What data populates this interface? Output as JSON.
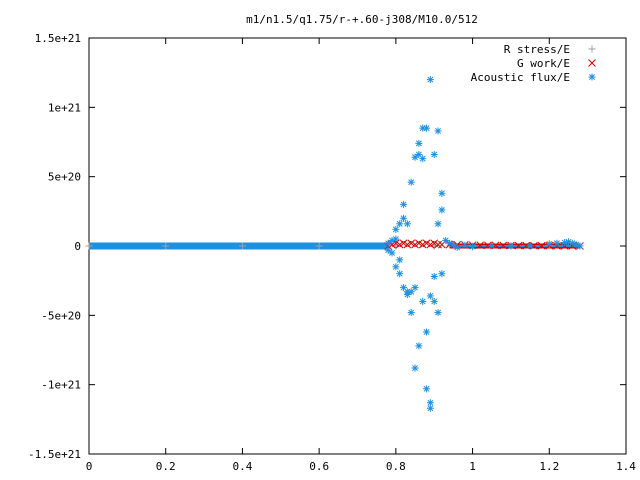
{
  "chart_data": {
    "type": "scatter",
    "title": "m1/n1.5/q1.75/r-+.60-j308/M10.0/512",
    "xlim": [
      0,
      1.4
    ],
    "ylim": [
      -1.5e+21,
      1.5e+21
    ],
    "x_ticks": [
      0,
      0.2,
      0.4,
      0.6,
      0.8,
      1,
      1.2,
      1.4
    ],
    "x_tick_labels": [
      "0",
      "0.2",
      "0.4",
      "0.6",
      "0.8",
      "1",
      "1.2",
      "1.4"
    ],
    "y_ticks": [
      1.5e+21,
      1e+21,
      5e+20,
      0,
      -5e+20,
      -1e+21,
      -1.5e+21
    ],
    "y_tick_labels": [
      "1.5e+21",
      "1e+21",
      "5e+20",
      "0",
      "-5e+20",
      "-1e+21",
      "-1.5e+21"
    ],
    "grid": false,
    "legend_position": "top-right",
    "colors": {
      "r_stress": "#a0a0a0",
      "g_work": "#d40000",
      "acoustic_flux": "#1e90e0"
    },
    "series": [
      {
        "name": "R stress/E",
        "marker": "plus",
        "x": [
          0.0,
          0.2,
          0.4,
          0.6,
          0.8,
          0.9,
          1.0,
          1.1,
          1.2,
          1.28
        ],
        "y": [
          0,
          0,
          0,
          0,
          0,
          0,
          0,
          0,
          0,
          0
        ]
      },
      {
        "name": "G work/E",
        "marker": "cross",
        "x": [
          0.78,
          0.79,
          0.8,
          0.81,
          0.82,
          0.83,
          0.84,
          0.85,
          0.86,
          0.87,
          0.88,
          0.89,
          0.9,
          0.91,
          0.92,
          0.94,
          0.96,
          0.98,
          1.0,
          1.02,
          1.04,
          1.06,
          1.08,
          1.1,
          1.12,
          1.14,
          1.16,
          1.18,
          1.2,
          1.22,
          1.24,
          1.26,
          1.28
        ],
        "y": [
          0,
          1e+19,
          2e+19,
          1e+19,
          2e+19,
          1e+19,
          2e+19,
          1e+19,
          2e+19,
          1e+19,
          2e+19,
          1e+19,
          2e+19,
          1e+19,
          1e+19,
          1e+19,
          8e+18,
          8e+18,
          6e+18,
          6e+18,
          5e+18,
          5e+18,
          4e+18,
          4e+18,
          3e+18,
          3e+18,
          2e+18,
          2e+18,
          2e+18,
          1e+18,
          1e+18,
          1e+18,
          0
        ]
      },
      {
        "name": "Acoustic flux/E",
        "marker": "star",
        "x": [
          0.78,
          0.78,
          0.79,
          0.79,
          0.8,
          0.8,
          0.8,
          0.81,
          0.81,
          0.81,
          0.82,
          0.82,
          0.82,
          0.83,
          0.83,
          0.83,
          0.84,
          0.84,
          0.84,
          0.85,
          0.85,
          0.85,
          0.86,
          0.86,
          0.86,
          0.87,
          0.87,
          0.87,
          0.88,
          0.88,
          0.88,
          0.89,
          0.89,
          0.89,
          0.89,
          0.9,
          0.9,
          0.9,
          0.91,
          0.91,
          0.91,
          0.92,
          0.92,
          0.92,
          0.93,
          0.94,
          0.95,
          0.96,
          0.98,
          1.0,
          1.05,
          1.1,
          1.15,
          1.2,
          1.22,
          1.24,
          1.25,
          1.26,
          1.27,
          1.28
        ],
        "y": [
          -3e+19,
          2e+19,
          -5e+19,
          4e+19,
          -1.5e+20,
          1.2e+20,
          5e+19,
          -2e+20,
          1.6e+20,
          -1e+20,
          -3e+20,
          3e+20,
          2e+20,
          -3.5e+20,
          1.6e+20,
          -3.3e+20,
          -3.3e+20,
          4.6e+20,
          -4.8e+20,
          6.4e+20,
          -8.8e+20,
          -3e+20,
          7.4e+20,
          -7.2e+20,
          6.6e+20,
          -4e+20,
          6.3e+20,
          8.5e+20,
          -1.03e+21,
          8.5e+20,
          -6.2e+20,
          -1.13e+21,
          1.2e+21,
          -1.17e+21,
          -3.6e+20,
          6.6e+20,
          -2.2e+20,
          -4e+20,
          8.3e+20,
          1.6e+20,
          -4.8e+20,
          3.8e+20,
          2.6e+20,
          -2e+20,
          4e+19,
          2e+19,
          1e+19,
          -1e+19,
          5e+18,
          -5e+18,
          3e+18,
          0,
          1e+18,
          1.5e+19,
          2e+19,
          2.5e+19,
          3e+19,
          2e+19,
          1e+19,
          0
        ]
      }
    ]
  }
}
